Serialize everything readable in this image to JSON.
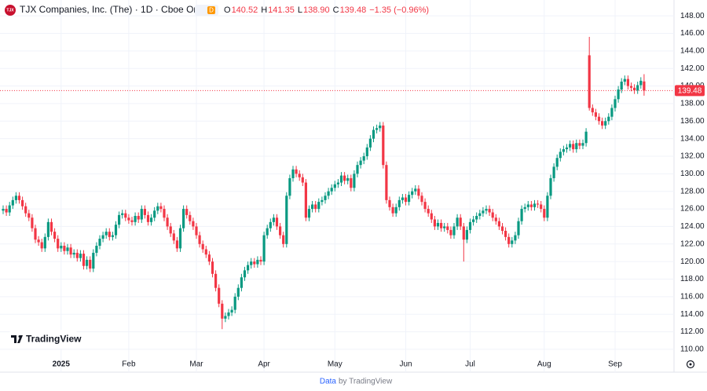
{
  "chart_data": {
    "type": "candlestick",
    "title": "TJX Companies, Inc. (The) · 1D · Cboe One",
    "interval_badge": "D",
    "ohlc_legend": [
      {
        "label": "O",
        "value": "140.52"
      },
      {
        "label": "H",
        "value": "141.35"
      },
      {
        "label": "L",
        "value": "138.90"
      },
      {
        "label": "C",
        "value": "139.48"
      }
    ],
    "change": "−1.35 (−0.96%)",
    "up_color": "#089981",
    "down_color": "#f23645",
    "ylim": [
      107.4,
      149.8
    ],
    "yticks": [
      {
        "value": 110,
        "label": "110.00"
      },
      {
        "value": 112,
        "label": "112.00"
      },
      {
        "value": 114,
        "label": "114.00"
      },
      {
        "value": 116,
        "label": "116.00"
      },
      {
        "value": 118,
        "label": "118.00"
      },
      {
        "value": 120,
        "label": "120.00"
      },
      {
        "value": 122,
        "label": "122.00"
      },
      {
        "value": 124,
        "label": "124.00"
      },
      {
        "value": 126,
        "label": "126.00"
      },
      {
        "value": 128,
        "label": "128.00"
      },
      {
        "value": 130,
        "label": "130.00"
      },
      {
        "value": 132,
        "label": "132.00"
      },
      {
        "value": 134,
        "label": "134.00"
      },
      {
        "value": 136,
        "label": "136.00"
      },
      {
        "value": 138,
        "label": "138.00"
      },
      {
        "value": 140,
        "label": "140.00"
      },
      {
        "value": 142,
        "label": "142.00"
      },
      {
        "value": 144,
        "label": "144.00"
      },
      {
        "value": 146,
        "label": "146.00"
      },
      {
        "value": 148,
        "label": "148.00"
      }
    ],
    "xticks": [
      {
        "value": 18,
        "label": "2025"
      },
      {
        "value": 39,
        "label": "Feb"
      },
      {
        "value": 60,
        "label": "Mar"
      },
      {
        "value": 81,
        "label": "Apr"
      },
      {
        "value": 103,
        "label": "May"
      },
      {
        "value": 125,
        "label": "Jun"
      },
      {
        "value": 145,
        "label": "Jul"
      },
      {
        "value": 168,
        "label": "Aug"
      },
      {
        "value": 190,
        "label": "Sep"
      }
    ],
    "grid": true,
    "open": [
      125.8,
      126,
      125.6,
      126.4,
      127,
      127.5,
      127,
      126.3,
      125.5,
      125,
      123.8,
      122.5,
      122.2,
      121.5,
      122.8,
      124.5,
      123.4,
      122.6,
      121.5,
      121.8,
      121.2,
      121.6,
      120.8,
      121,
      120.4,
      120.9,
      119.5,
      120.2,
      119.2,
      121,
      121.8,
      122.6,
      123,
      123.4,
      122.8,
      123,
      124.2,
      125.3,
      125.5,
      125,
      124.7,
      124.5,
      125.2,
      124.8,
      126,
      125.3,
      124.5,
      125,
      125.8,
      126.3,
      126,
      125,
      124,
      123.2,
      122.4,
      121.5,
      123.8,
      126,
      125.3,
      124.6,
      124,
      123,
      122,
      121.4,
      120.8,
      120,
      118.6,
      117,
      115.2,
      113.5,
      113.8,
      114.2,
      114.5,
      116,
      117,
      118.2,
      119,
      119.6,
      120,
      119.7,
      120.2,
      120,
      123,
      123.8,
      124.5,
      125,
      124,
      123,
      122,
      127.5,
      129.5,
      130.5,
      130,
      129.6,
      129,
      125,
      126,
      126.5,
      126,
      126.8,
      127,
      127.5,
      128,
      128.4,
      128.8,
      129,
      129.8,
      129.2,
      129.5,
      128.4,
      130,
      131,
      131.5,
      132,
      133,
      134,
      135,
      135.2,
      135.5,
      131,
      127,
      126.2,
      125.5,
      126.2,
      127,
      127.3,
      126.8,
      127.6,
      128,
      128.3,
      127.5,
      126.8,
      126,
      125.5,
      124.8,
      124,
      124.4,
      123.8,
      124,
      123.6,
      123,
      124,
      125,
      124,
      122.5,
      123.6,
      124.5,
      124.8,
      125.2,
      125.5,
      125.8,
      126,
      125.6,
      125,
      124.6,
      124,
      123.5,
      122.8,
      122,
      122.4,
      123,
      124.6,
      126,
      126.2,
      126.5,
      126.2,
      126.6,
      126.5,
      126,
      125,
      127.5,
      129.5,
      130.8,
      131.8,
      132.5,
      132.8,
      133,
      133.4,
      132.8,
      133.5,
      133.2,
      133.5,
      143.5,
      137.5,
      137,
      136.5,
      136,
      135.5,
      136,
      136.5,
      137.5,
      138.5,
      139.6,
      140.5,
      140.8,
      140,
      139.8,
      139.5,
      140.1,
      140.52
    ],
    "high": [
      126.4,
      126.4,
      126.8,
      127.4,
      127.9,
      127.9,
      127.4,
      126.7,
      125.9,
      125.4,
      124.2,
      122.9,
      122.6,
      123.2,
      124.9,
      124.9,
      123.8,
      123,
      122.2,
      122.2,
      122,
      122,
      121.4,
      121.4,
      121.3,
      121.3,
      120.6,
      120.6,
      121.4,
      122.2,
      123,
      123.4,
      123.8,
      123.8,
      123.4,
      124.6,
      125.7,
      125.9,
      125.9,
      125.4,
      125.1,
      125.6,
      125.6,
      126.4,
      126.4,
      125.7,
      125.4,
      126.2,
      126.7,
      126.7,
      126.4,
      125.4,
      124.4,
      123.6,
      122.8,
      124.2,
      126.4,
      126.4,
      125.7,
      125,
      124.4,
      123.4,
      122.4,
      121.8,
      121.2,
      120.4,
      119,
      117.4,
      115.6,
      114.2,
      114.6,
      114.9,
      116.4,
      117.4,
      118.6,
      119.4,
      120,
      120.4,
      120.4,
      120.6,
      120.6,
      123.4,
      124.2,
      124.9,
      125.4,
      125.4,
      124.4,
      123.4,
      127.9,
      129.9,
      130.9,
      130.9,
      130.4,
      130,
      129.4,
      126.4,
      126.9,
      126.9,
      127.2,
      127.4,
      127.9,
      128.4,
      128.8,
      129.2,
      129.4,
      130.2,
      130.2,
      129.9,
      129.9,
      130.4,
      131.4,
      131.9,
      132.4,
      133.4,
      134.4,
      135.4,
      135.6,
      135.9,
      135.9,
      131.4,
      127.4,
      126.6,
      126.6,
      127.4,
      127.7,
      127.7,
      128,
      128.4,
      128.7,
      128.7,
      127.9,
      127.2,
      126.4,
      125.9,
      125.2,
      124.8,
      124.8,
      124.4,
      124.4,
      124,
      124.4,
      125.4,
      125.4,
      124.4,
      124,
      124.9,
      125.2,
      125.6,
      125.9,
      126.2,
      126.4,
      126.4,
      126,
      125.4,
      125,
      124.4,
      123.9,
      123.2,
      122.8,
      123.4,
      125,
      126.4,
      126.6,
      126.9,
      126.9,
      127,
      127,
      126.9,
      126.4,
      127.9,
      129.9,
      131.2,
      132.2,
      132.9,
      133.2,
      133.4,
      133.8,
      133.8,
      133.9,
      133.9,
      133.9,
      135.2,
      145.6,
      137.9,
      137.4,
      136.9,
      136.4,
      136.4,
      136.9,
      137.9,
      138.9,
      140,
      140.9,
      141.2,
      141.2,
      140.4,
      140.2,
      140.5,
      141,
      141.35
    ],
    "low": [
      125.4,
      125.2,
      125.2,
      126,
      126.6,
      126.6,
      125.9,
      125.1,
      124.6,
      123.4,
      122.1,
      121.8,
      121.1,
      121.1,
      122.4,
      123,
      122.2,
      121.1,
      121.1,
      120.8,
      120.8,
      120.4,
      120.4,
      120,
      120,
      119.1,
      119.1,
      118.8,
      118.8,
      120.6,
      121.4,
      122.2,
      122.6,
      122.4,
      122.4,
      122.6,
      123.8,
      124.9,
      124.6,
      124.3,
      124.1,
      124.1,
      124.4,
      124.4,
      124.9,
      124.1,
      124.1,
      124.6,
      125.4,
      125.6,
      124.6,
      123.6,
      122.8,
      122,
      121.1,
      121.1,
      123.4,
      124.9,
      124.2,
      123.6,
      122.6,
      121.6,
      121,
      120.4,
      119.6,
      118.2,
      116.6,
      114.8,
      112.3,
      113.1,
      113.4,
      113.8,
      114.1,
      115.6,
      116.6,
      117.8,
      118.6,
      119.2,
      119.3,
      119.3,
      119.6,
      119.6,
      122.6,
      123.4,
      124.1,
      123.6,
      122.6,
      121.6,
      121.6,
      127.1,
      129.1,
      129.6,
      129.2,
      128.6,
      124.6,
      124.6,
      125.6,
      125.6,
      125.6,
      126.4,
      126.6,
      127.1,
      127.6,
      128,
      128.4,
      128.6,
      128.8,
      128.8,
      128,
      128,
      129.6,
      130.6,
      131.1,
      131.6,
      132.6,
      133.6,
      134.6,
      134.8,
      130.6,
      126.6,
      125.8,
      125.1,
      125.1,
      125.8,
      126.6,
      126.4,
      126.4,
      127.2,
      127.6,
      127.1,
      126.4,
      125.6,
      125.1,
      124.4,
      123.6,
      123.6,
      123.4,
      123.4,
      123.2,
      122.6,
      122.6,
      123.6,
      123.6,
      120,
      122.1,
      123.2,
      124.1,
      124.4,
      124.8,
      125.1,
      125.4,
      125.2,
      124.6,
      124.2,
      123.6,
      123.1,
      122.4,
      121.6,
      121.6,
      122,
      122.6,
      124.2,
      125.6,
      125.8,
      125.8,
      125.8,
      126.1,
      125.6,
      124.6,
      124.6,
      127.1,
      129.1,
      130.4,
      131.4,
      132.1,
      132.4,
      132.6,
      132.4,
      132.4,
      132.8,
      132.8,
      133.1,
      137.2,
      136.6,
      136.1,
      135.6,
      135.1,
      135.1,
      135.6,
      136.1,
      137.1,
      138.1,
      139.2,
      140.1,
      139.6,
      139.4,
      139.1,
      139.1,
      139.7,
      138.9
    ],
    "close": [
      126,
      125.6,
      126.4,
      127,
      127.5,
      127,
      126.3,
      125.5,
      125,
      123.8,
      122.5,
      122.2,
      121.5,
      122.8,
      124.5,
      123.4,
      122.6,
      121.5,
      121.8,
      121.2,
      121.6,
      120.8,
      121,
      120.4,
      120.9,
      119.5,
      120.2,
      119.2,
      121,
      121.8,
      122.6,
      123,
      123.4,
      122.8,
      123,
      124.2,
      125.3,
      125.5,
      125,
      124.7,
      124.5,
      125.2,
      124.8,
      126,
      125.3,
      124.5,
      125,
      125.8,
      126.3,
      126,
      125,
      124,
      123.2,
      122.4,
      121.5,
      123.8,
      126,
      125.3,
      124.6,
      124,
      123,
      122,
      121.4,
      120.8,
      120,
      118.6,
      117,
      115.2,
      113.5,
      113.8,
      114.2,
      114.5,
      116,
      117,
      118.2,
      119,
      119.6,
      120,
      119.7,
      120.2,
      120,
      123,
      123.8,
      124.5,
      125,
      124,
      123,
      122,
      127.5,
      129.5,
      130.5,
      130,
      129.6,
      129,
      125,
      126,
      126.5,
      126,
      126.8,
      127,
      127.5,
      128,
      128.4,
      128.8,
      129,
      129.8,
      129.2,
      129.5,
      128.4,
      130,
      131,
      131.5,
      132,
      133,
      134,
      135,
      135.2,
      135.5,
      131,
      127,
      126.2,
      125.5,
      126.2,
      127,
      127.3,
      126.8,
      127.6,
      128,
      128.3,
      127.5,
      126.8,
      126,
      125.5,
      124.8,
      124,
      124.4,
      123.8,
      124,
      123.6,
      123,
      124,
      125,
      124,
      122.5,
      123.6,
      124.5,
      124.8,
      125.2,
      125.5,
      125.8,
      126,
      125.6,
      125,
      124.6,
      124,
      123.5,
      122.8,
      122,
      122.4,
      123,
      124.6,
      126,
      126.2,
      126.5,
      126.2,
      126.6,
      126.5,
      126,
      125,
      127.5,
      129.5,
      130.8,
      131.8,
      132.5,
      132.8,
      133,
      133.4,
      132.8,
      133.5,
      133.2,
      133.5,
      134.8,
      137.5,
      137,
      136.5,
      136,
      135.5,
      136,
      136.5,
      137.5,
      138.5,
      139.6,
      140.5,
      140.8,
      140,
      139.8,
      139.5,
      140.1,
      140.6,
      139.48
    ],
    "last_price_line": true,
    "watermark": "TradingView",
    "footer": {
      "link": "Data",
      "text": "by TradingView"
    }
  }
}
